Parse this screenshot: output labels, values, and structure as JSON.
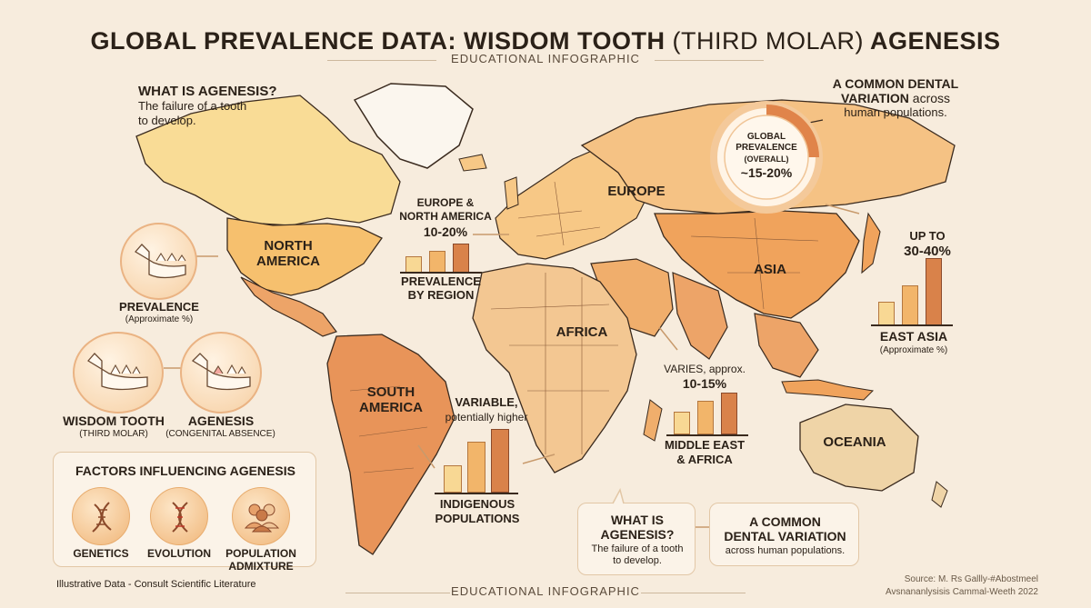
{
  "header": {
    "title_bold_1": "GLOBAL PREVALENCE DATA: WISDOM TOOTH ",
    "title_light": "(THIRD MOLAR)",
    "title_bold_2": " AGENESIS",
    "subtitle": "EDUCATIONAL INFOGRAPHIC"
  },
  "what_is_top": {
    "heading": "WHAT IS AGENESIS?",
    "line1": "The failure of a tooth",
    "line2": "to develop."
  },
  "common_top": {
    "line1": "A COMMON DENTAL",
    "line2_bold": "VARIATION",
    "line2_rest": " across",
    "line3": "human populations."
  },
  "global": {
    "line1": "GLOBAL",
    "line2": "PREVALENCE",
    "line3": "(OVERALL)",
    "value": "~15-20%",
    "donut_fraction": 0.25
  },
  "regions": {
    "north_america_1": "NORTH",
    "north_america_2": "AMERICA",
    "south_america_1": "SOUTH",
    "south_america_2": "AMERICA",
    "europe": "EUROPE",
    "africa": "AFRICA",
    "asia": "ASIA",
    "oceania": "OCEANIA"
  },
  "europe_na": {
    "line1": "EUROPE &",
    "line2": "NORTH AMERICA",
    "value": "10-20%",
    "caption1": "PREVALENCE",
    "caption2": "BY REGION"
  },
  "east_asia": {
    "line1": "UP TO",
    "value": "30-40%",
    "caption": "EAST ASIA",
    "note": "(Approximate %)"
  },
  "middle_east": {
    "line1": "VARIES, approx.",
    "value": "10-15%",
    "caption1": "MIDDLE EAST",
    "caption2": "& AFRICA"
  },
  "indigenous": {
    "line1": "VARIABLE,",
    "line2": "potentially higher",
    "caption1": "INDIGENOUS",
    "caption2": "POPULATIONS"
  },
  "teeth": {
    "prevalence": "PREVALENCE",
    "prevalence_note": "(Approximate %)",
    "wisdom": "WISDOM TOOTH",
    "wisdom_note": "(THIRD MOLAR)",
    "agenesis": "AGENESIS",
    "agenesis_note": "(CONGENITAL ABSENCE)"
  },
  "factors": {
    "heading": "FACTORS INFLUENCING AGENESIS",
    "genetics": "GENETICS",
    "evolution": "EVOLUTION",
    "population1": "POPULATION",
    "population2": "ADMIXTURE"
  },
  "what_is_bottom": {
    "line1": "WHAT IS",
    "line2": "AGENESIS?",
    "line3": "The failure of a tooth",
    "line4": "to develop."
  },
  "common_bottom": {
    "line1": "A COMMON",
    "line2": "DENTAL VARIATION",
    "line3": "across human populations."
  },
  "footer": {
    "disclaimer": "Illustrative Data - Consult Scientific Literature",
    "subtitle": "EDUCATIONAL INFOGRAPHIC",
    "source1": "Source: M. Rs Gallly-#Abostmeel",
    "source2": "Avsnananlysisis Cammal-Weeth 2022"
  },
  "colors": {
    "light": "#f8d894",
    "mid": "#f2b56a",
    "dark": "#d9824a",
    "bar_outline": "#8b4a2b"
  }
}
